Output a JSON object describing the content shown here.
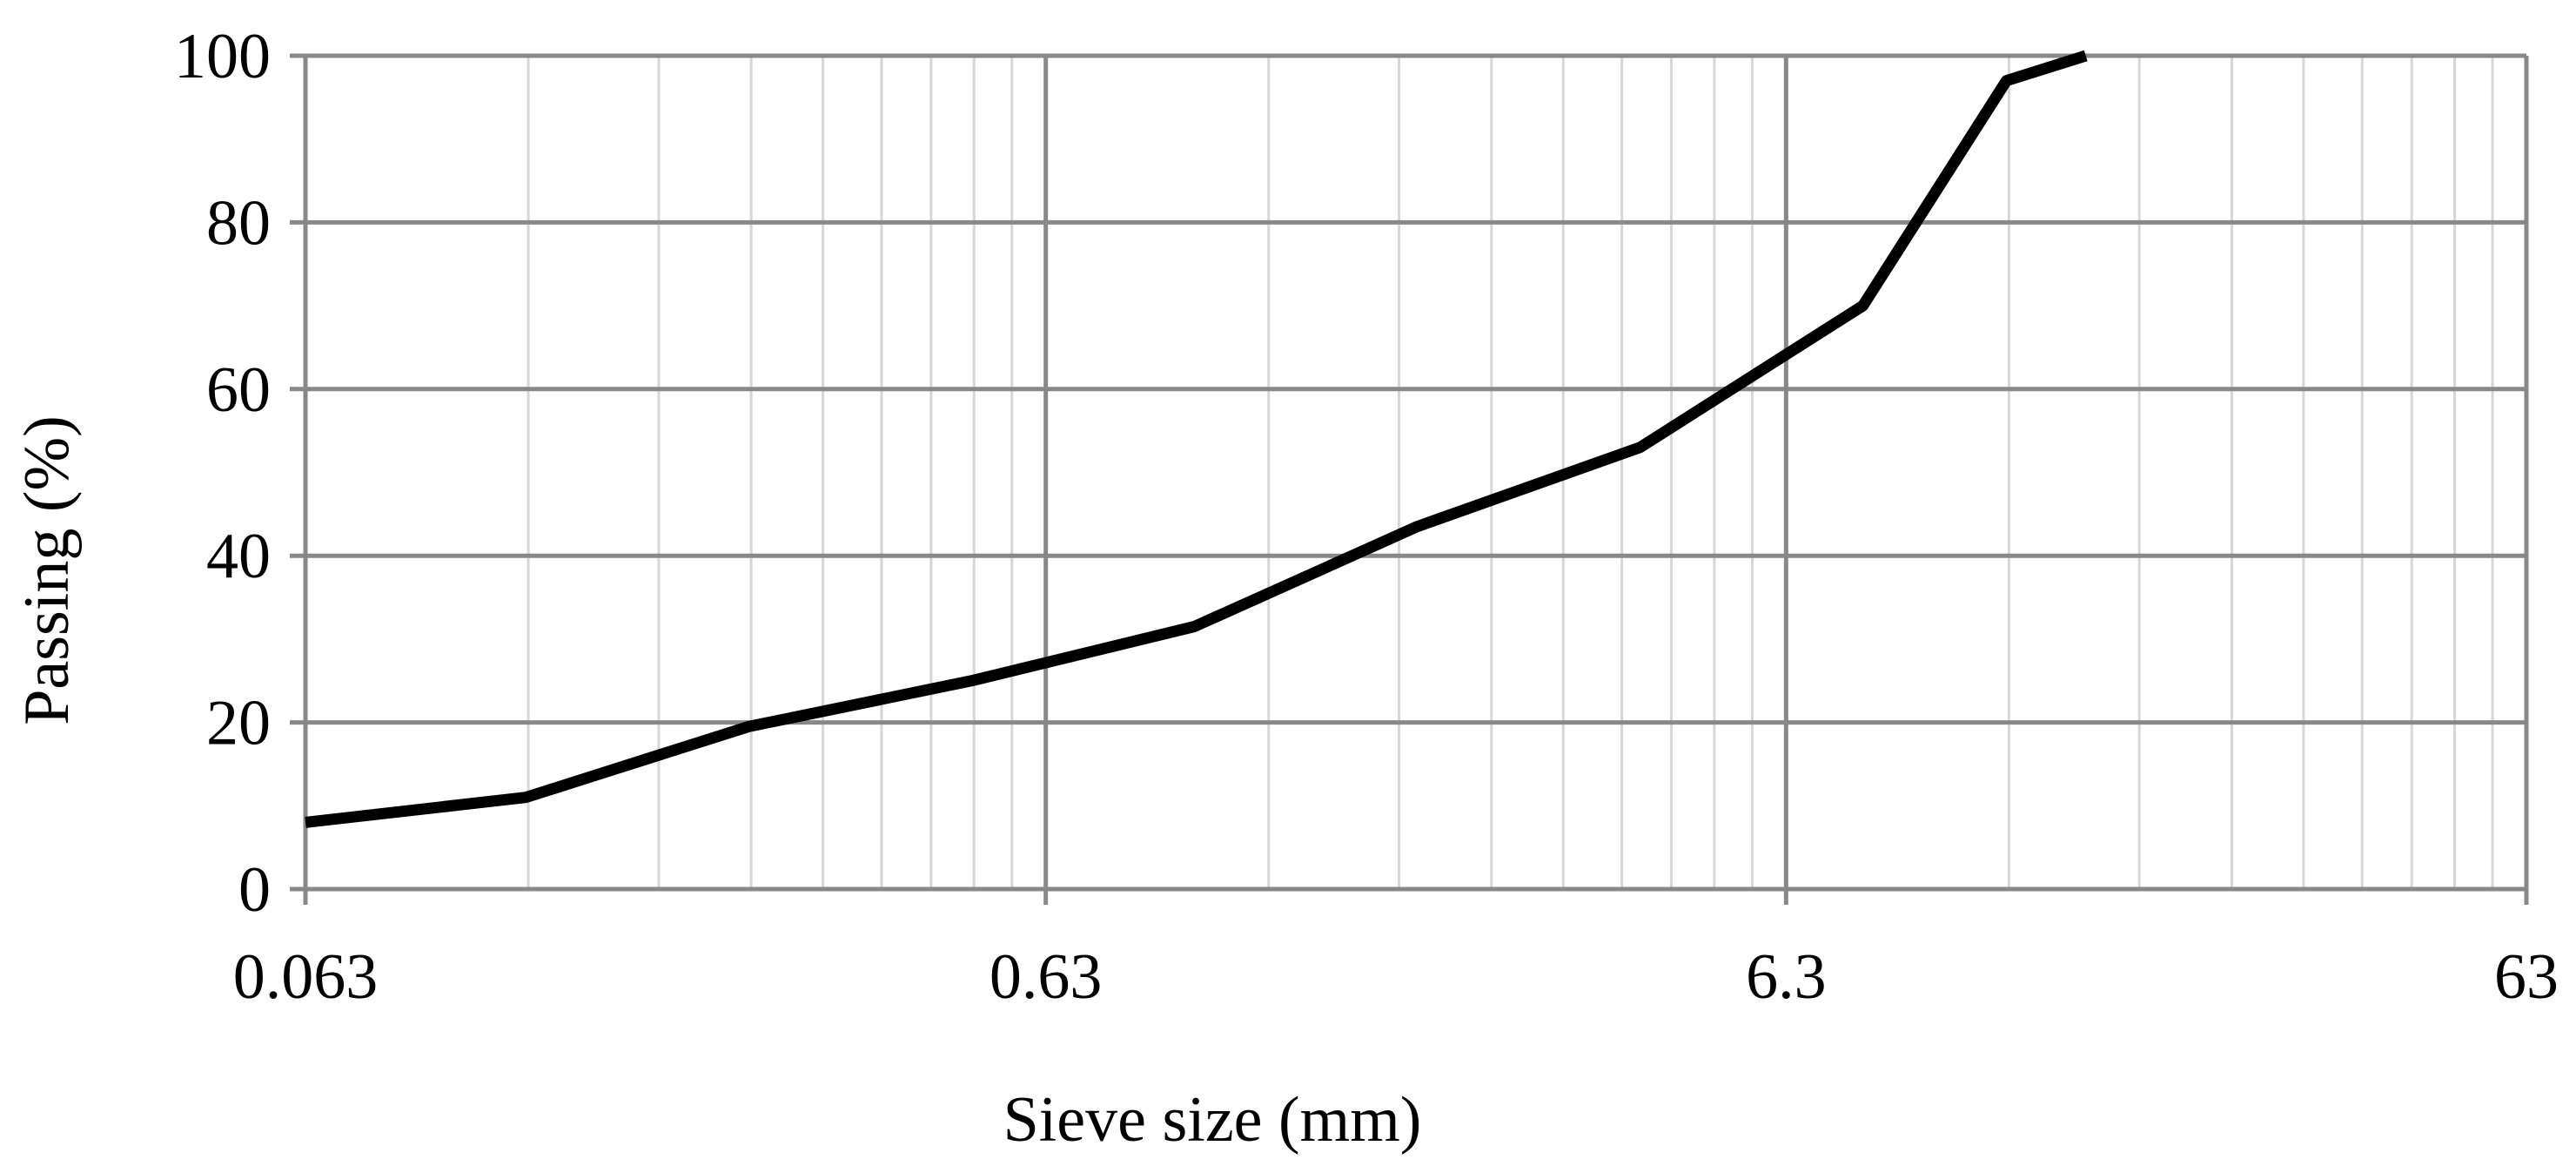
{
  "chart_data": {
    "type": "line",
    "title": "",
    "xlabel": "Sieve size (mm)",
    "ylabel": "Passing (%)",
    "x_scale": "log",
    "xlim": [
      0.063,
      63
    ],
    "ylim": [
      0,
      100
    ],
    "x_ticks": [
      0.063,
      0.63,
      6.3,
      63
    ],
    "x_tick_labels": [
      "0.063",
      "0.63",
      "6.3",
      "63"
    ],
    "y_ticks": [
      0,
      20,
      40,
      60,
      80,
      100
    ],
    "y_tick_labels": [
      "0",
      "20",
      "40",
      "60",
      "80",
      "100"
    ],
    "grid": true,
    "legend": "none",
    "series": [
      {
        "x": [
          0.063,
          0.125,
          0.25,
          0.5,
          1,
          2,
          4,
          8,
          12.5,
          16
        ],
        "y": [
          8,
          11,
          19.5,
          25,
          31.5,
          43.5,
          53,
          70,
          97,
          100
        ],
        "color": "#000000"
      }
    ],
    "colors": {
      "major_grid": "#888888",
      "minor_grid": "#d6d6d6",
      "axis": "#888888",
      "line": "#000000"
    }
  }
}
